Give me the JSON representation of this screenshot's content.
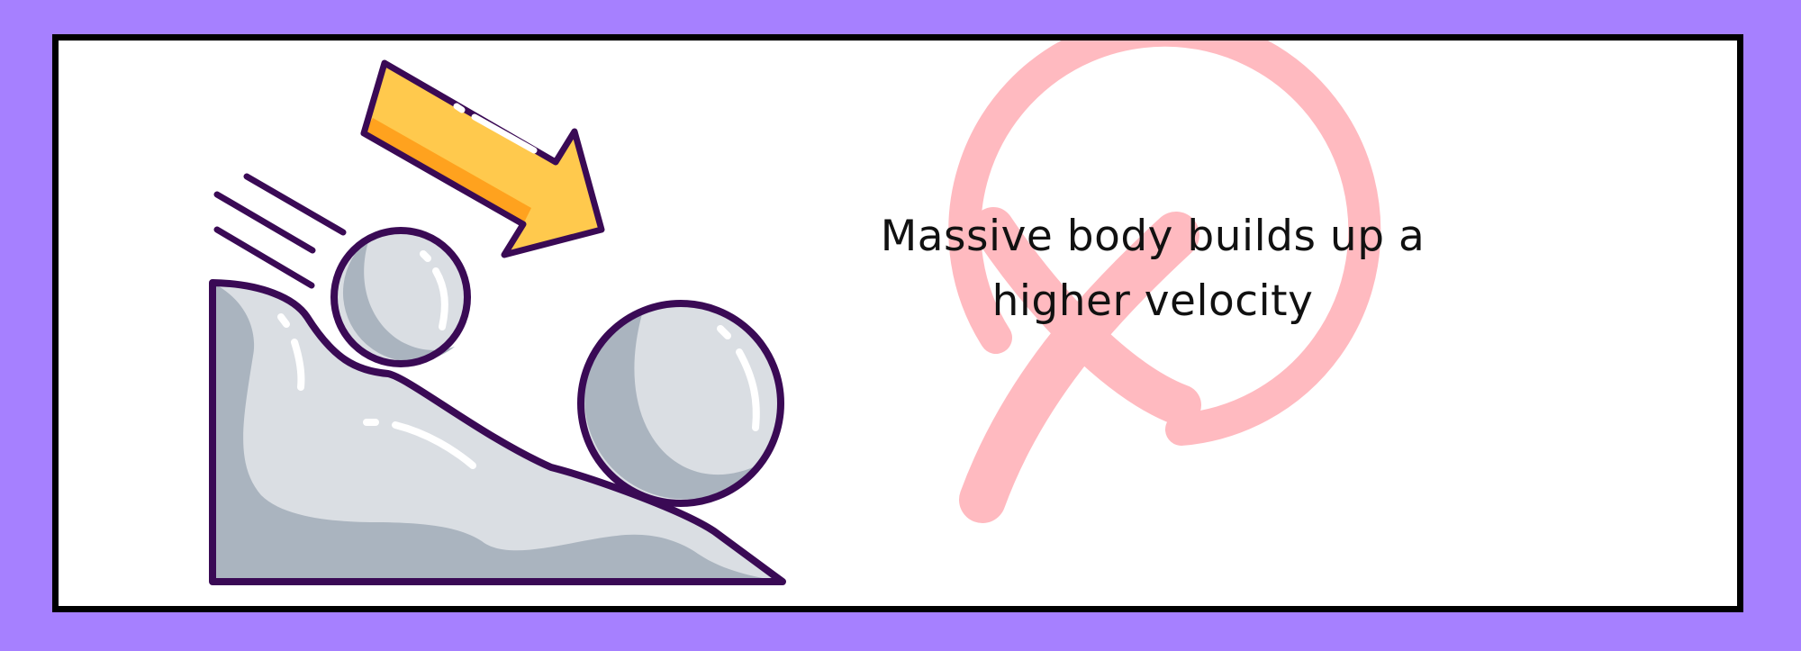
{
  "caption": {
    "line1": "Massive body builds up a",
    "line2": "higher velocity"
  },
  "icons": {
    "slope": "slope-illustration",
    "ball_small": "small-ball-icon",
    "ball_large": "large-ball-icon",
    "arrow": "down-right-arrow-icon",
    "cross": "cross-circle-icon",
    "speed_lines": "speed-lines-icon"
  },
  "colors": {
    "page_background": "#a680ff",
    "panel_background": "#ffffff",
    "panel_border": "#000000",
    "outline": "#3a0a55",
    "slope_light": "#dadee3",
    "slope_shadow": "#aab4bf",
    "arrow_yellow": "#ffc94d",
    "arrow_orange": "#ffa21e",
    "cross": "#ffbac0"
  }
}
